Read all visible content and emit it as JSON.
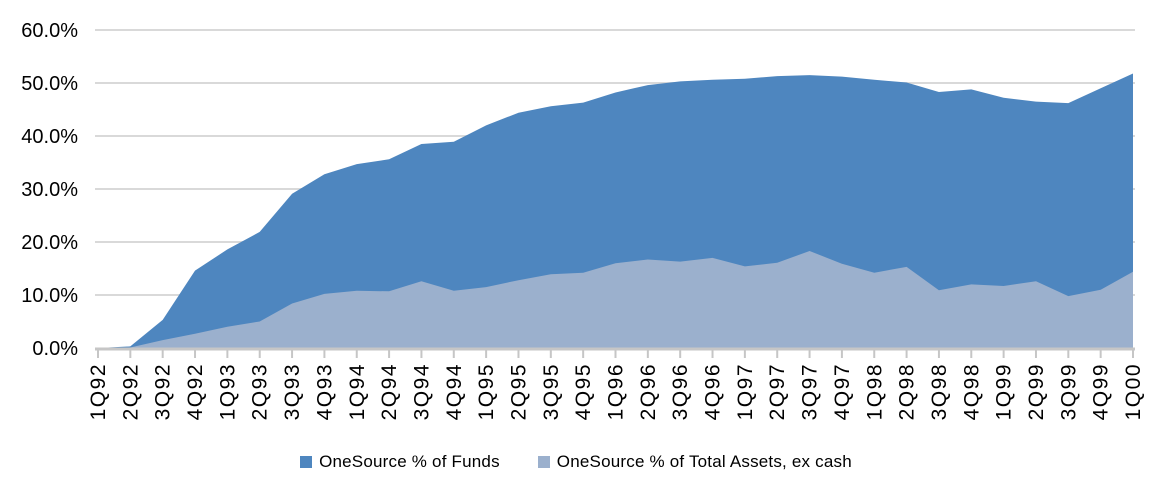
{
  "chart_data": {
    "type": "area",
    "title": "",
    "xlabel": "",
    "ylabel": "",
    "ylim": [
      0,
      60
    ],
    "grid": true,
    "legend_position": "bottom",
    "categories": [
      "1Q92",
      "2Q92",
      "3Q92",
      "4Q92",
      "1Q93",
      "2Q93",
      "3Q93",
      "4Q93",
      "1Q94",
      "2Q94",
      "3Q94",
      "4Q94",
      "1Q95",
      "2Q95",
      "3Q95",
      "4Q95",
      "1Q96",
      "2Q96",
      "3Q96",
      "4Q96",
      "1Q97",
      "2Q97",
      "3Q97",
      "4Q97",
      "1Q98",
      "2Q98",
      "3Q98",
      "4Q98",
      "1Q99",
      "2Q99",
      "3Q99",
      "4Q99",
      "1Q00"
    ],
    "y_ticks": [
      {
        "value": 60,
        "label": "60.0%"
      },
      {
        "value": 50,
        "label": "50.0%"
      },
      {
        "value": 40,
        "label": "40.0%"
      },
      {
        "value": 30,
        "label": "30.0%"
      },
      {
        "value": 20,
        "label": "20.0%"
      },
      {
        "value": 10,
        "label": "10.0%"
      },
      {
        "value": 0,
        "label": "0.0%"
      }
    ],
    "series": [
      {
        "name": "OneSource % of Funds",
        "color": "#4E86BF",
        "values": [
          0.0,
          0.3,
          5.3,
          14.6,
          18.6,
          21.9,
          29.1,
          32.8,
          34.7,
          35.6,
          38.5,
          38.9,
          42.0,
          44.4,
          45.6,
          46.3,
          48.2,
          49.6,
          50.3,
          50.6,
          50.8,
          51.3,
          51.5,
          51.2,
          50.6,
          50.1,
          48.3,
          48.8,
          47.2,
          46.5,
          46.2,
          49.0,
          51.8
        ]
      },
      {
        "name": "OneSource % of Total Assets, ex cash",
        "color": "#9BB0CD",
        "values": [
          0.0,
          0.1,
          1.5,
          2.7,
          4.0,
          5.0,
          8.4,
          10.2,
          10.8,
          10.7,
          12.6,
          10.8,
          11.5,
          12.8,
          13.9,
          14.2,
          16.0,
          16.7,
          16.3,
          17.0,
          15.4,
          16.1,
          18.3,
          15.9,
          14.2,
          15.3,
          10.9,
          12.0,
          11.7,
          12.6,
          9.8,
          11.0,
          14.4
        ]
      }
    ],
    "style": {
      "gridline_color": "#D9D9D9",
      "axis_color": "#C6C6C6",
      "label_color": "#000000"
    }
  }
}
